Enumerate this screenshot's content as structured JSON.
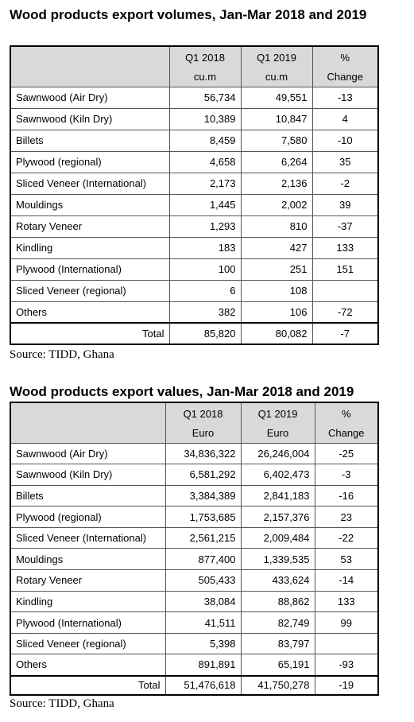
{
  "tables": [
    {
      "title": "Wood products export volumes, Jan-Mar 2018 and 2019",
      "columns": [
        {
          "label": "Q1 2018",
          "unit": "cu.m"
        },
        {
          "label": "Q1 2019",
          "unit": "cu.m"
        },
        {
          "label": "%",
          "unit": "Change"
        }
      ],
      "rows": [
        [
          "Sawnwood (Air Dry)",
          "56,734",
          "49,551",
          "-13"
        ],
        [
          "Sawnwood (Kiln Dry)",
          "10,389",
          "10,847",
          "4"
        ],
        [
          "Billets",
          "8,459",
          "7,580",
          "-10"
        ],
        [
          "Plywood (regional)",
          "4,658",
          "6,264",
          "35"
        ],
        [
          "Sliced Veneer (International)",
          "2,173",
          "2,136",
          "-2"
        ],
        [
          "Mouldings",
          "1,445",
          "2,002",
          "39"
        ],
        [
          "Rotary Veneer",
          "1,293",
          "810",
          "-37"
        ],
        [
          "Kindling",
          "183",
          "427",
          "133"
        ],
        [
          "Plywood (International)",
          "100",
          "251",
          "151"
        ],
        [
          "Sliced Veneer (regional)",
          "6",
          "108",
          null
        ],
        [
          "Others",
          "382",
          "106",
          "-72"
        ]
      ],
      "total": [
        "Total",
        "85,820",
        "80,082",
        "-7"
      ],
      "source": "Source: TIDD, Ghana"
    },
    {
      "title": "Wood products export values, Jan-Mar 2018 and 2019",
      "columns": [
        {
          "label": "Q1 2018",
          "unit": "Euro"
        },
        {
          "label": "Q1 2019",
          "unit": "Euro"
        },
        {
          "label": "%",
          "unit": "Change"
        }
      ],
      "rows": [
        [
          "Sawnwood (Air Dry)",
          "34,836,322",
          "26,246,004",
          "-25"
        ],
        [
          "Sawnwood (Kiln Dry)",
          "6,581,292",
          "6,402,473",
          "-3"
        ],
        [
          "Billets",
          "3,384,389",
          "2,841,183",
          "-16"
        ],
        [
          "Plywood (regional)",
          "1,753,685",
          "2,157,376",
          "23"
        ],
        [
          "Sliced Veneer (International)",
          "2,561,215",
          "2,009,484",
          "-22"
        ],
        [
          "Mouldings",
          "877,400",
          "1,339,535",
          "53"
        ],
        [
          "Rotary Veneer",
          "505,433",
          "433,624",
          "-14"
        ],
        [
          "Kindling",
          "38,084",
          "88,862",
          "133"
        ],
        [
          "Plywood (International)",
          "41,511",
          "82,749",
          "99"
        ],
        [
          "Sliced Veneer (regional)",
          "5,398",
          "83,797",
          null
        ],
        [
          "Others",
          "891,891",
          "65,191",
          "-93"
        ]
      ],
      "total": [
        "Total",
        "51,476,618",
        "41,750,278",
        "-19"
      ],
      "source": "Source: TIDD, Ghana"
    }
  ]
}
